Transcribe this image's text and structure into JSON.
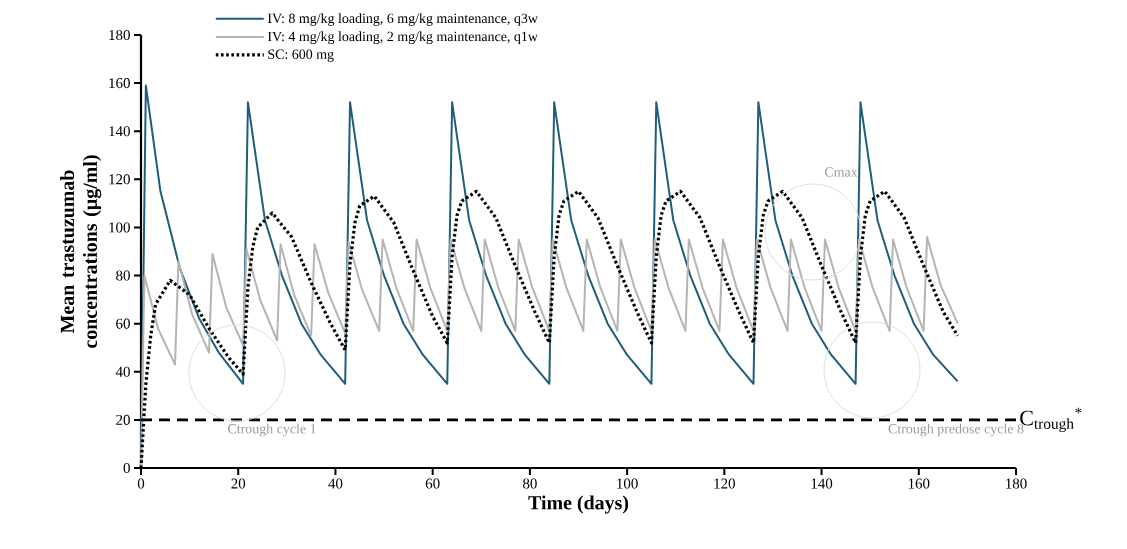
{
  "chart_data": {
    "type": "line",
    "xlabel": "Time (days)",
    "ylabel": "Mean trastuzumab concentrations (µg/ml)",
    "xlim": [
      0,
      180
    ],
    "ylim": [
      0,
      180
    ],
    "xticks": [
      0,
      20,
      40,
      60,
      80,
      100,
      120,
      140,
      160,
      180
    ],
    "yticks": [
      0,
      20,
      40,
      60,
      80,
      100,
      120,
      140,
      160,
      180
    ],
    "legend": "top left",
    "grid": false,
    "marker": "none",
    "series": [
      {
        "name": "IV: 8 mg/kg loading, 6 mg/kg maintenance, q3w",
        "color": "#1f5d7a",
        "line_style": "solid",
        "x": [
          0,
          1,
          4,
          8,
          12,
          16,
          21,
          22,
          25.5,
          29,
          33,
          37,
          42,
          43,
          46.5,
          50,
          54,
          58,
          63,
          64,
          67.5,
          71,
          75,
          79,
          84,
          85,
          88.5,
          92,
          96,
          100,
          105,
          106,
          109.5,
          113,
          117,
          121,
          126,
          127,
          130.5,
          134,
          138,
          142,
          147,
          148,
          151.5,
          155,
          159,
          163,
          168
        ],
        "values": [
          0,
          159,
          115,
          83,
          62,
          48,
          35,
          152,
          103,
          80,
          60,
          47,
          35,
          152,
          103,
          80,
          60,
          47,
          35,
          152,
          103,
          80,
          60,
          47,
          35,
          152,
          103,
          80,
          60,
          47,
          35,
          152,
          103,
          80,
          60,
          47,
          35,
          152,
          103,
          80,
          60,
          47,
          35,
          152,
          103,
          80,
          60,
          47,
          36
        ]
      },
      {
        "name": "IV: 4 mg/kg loading, 2 mg/kg maintenance, q1w",
        "color": "#b4b4b4",
        "line_style": "solid",
        "x": [
          0,
          0.7,
          3.5,
          7,
          7.7,
          10.5,
          14,
          14.7,
          17.5,
          21,
          21.7,
          24.5,
          28,
          28.7,
          31.5,
          35,
          35.7,
          38.5,
          42,
          42.7,
          45.5,
          49,
          49.7,
          52.5,
          56,
          56.7,
          59.5,
          63,
          63.7,
          66.5,
          70,
          70.7,
          73.5,
          77,
          77.7,
          80.5,
          84,
          84.7,
          87.5,
          91,
          91.7,
          94.5,
          98,
          98.7,
          101.5,
          105,
          105.7,
          108.5,
          112,
          112.7,
          115.5,
          119,
          119.7,
          122.5,
          126,
          126.7,
          129.5,
          133,
          133.7,
          136.5,
          140,
          140.7,
          143.5,
          147,
          147.7,
          150.5,
          154,
          154.7,
          157.5,
          161,
          161.7,
          164.5,
          168
        ],
        "values": [
          0,
          80,
          58,
          43,
          86,
          64,
          48,
          89,
          67,
          51,
          91,
          70,
          53,
          93,
          72,
          55,
          93,
          73,
          56,
          94,
          74,
          57,
          95,
          75,
          57,
          95,
          75,
          57,
          95,
          75,
          57,
          95,
          75,
          57,
          95,
          75,
          57,
          95,
          75,
          57,
          95,
          75,
          57,
          95,
          75,
          57,
          95,
          75,
          57,
          95,
          75,
          57,
          95,
          75,
          57,
          95,
          75,
          57,
          95,
          75,
          57,
          95,
          75,
          57,
          95,
          75,
          57,
          95,
          75,
          57,
          96,
          76,
          60
        ]
      },
      {
        "name": "SC: 600 mg",
        "color": "#000000",
        "line_style": "dotted",
        "x": [
          0,
          1,
          2,
          3,
          6,
          10,
          14,
          18,
          21,
          22,
          23,
          24,
          27,
          31,
          35,
          39,
          42,
          43,
          44,
          45,
          48,
          52,
          56,
          60,
          63,
          64,
          65,
          66,
          69,
          73,
          77,
          81,
          84,
          85,
          86,
          87,
          90,
          94,
          98,
          102,
          105,
          106,
          107,
          108,
          111,
          115,
          119,
          123,
          126,
          127,
          128,
          129,
          132,
          136,
          140,
          144,
          147,
          148,
          149,
          150,
          153,
          157,
          161,
          165,
          168
        ],
        "values": [
          0,
          35,
          55,
          68,
          78,
          72,
          58,
          46,
          39,
          75,
          92,
          100,
          106,
          96,
          77,
          60,
          49,
          85,
          102,
          109,
          113,
          102,
          82,
          63,
          52,
          88,
          105,
          111,
          115,
          104,
          84,
          65,
          52,
          88,
          105,
          111,
          115,
          104,
          84,
          65,
          52,
          88,
          105,
          111,
          115,
          104,
          84,
          65,
          52,
          88,
          105,
          111,
          115,
          104,
          84,
          65,
          52,
          88,
          105,
          111,
          115,
          104,
          84,
          65,
          55
        ]
      }
    ],
    "ref_lines": [
      {
        "axis": "y",
        "value": 20,
        "label": "C$_{trough}$$^{*}$",
        "color": "#000000",
        "line_style": "dashed"
      }
    ],
    "annotations": [
      "Cmax",
      "Ctrough cycle 1",
      "Ctrough predose cycle 8"
    ]
  }
}
